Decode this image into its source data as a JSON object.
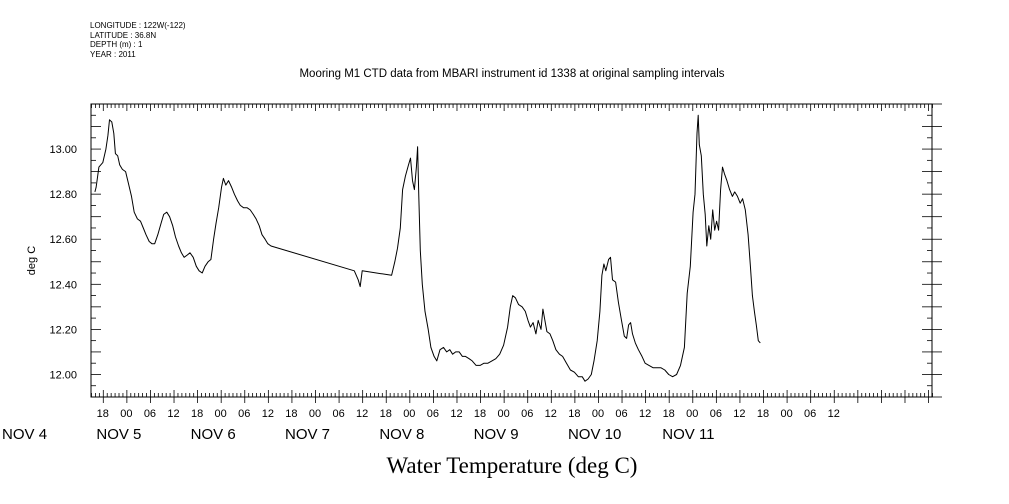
{
  "header": {
    "lines": [
      "LONGITUDE : 122W(-122)",
      "LATITUDE : 36.8N",
      "DEPTH (m) : 1",
      "YEAR : 2011"
    ],
    "title": "Mooring M1 CTD data from MBARI instrument id 1338 at original sampling intervals"
  },
  "chart_data": {
    "type": "line",
    "title": "Water Temperature (deg C)",
    "ylabel": "deg C",
    "xlabel": "",
    "ylim": [
      11.9,
      13.2
    ],
    "yticks": [
      12.0,
      12.2,
      12.4,
      12.6,
      12.8,
      13.0
    ],
    "ytick_labels": [
      "12.00",
      "12.20",
      "12.40",
      "12.60",
      "12.80",
      "13.00"
    ],
    "xlim_hours": [
      87.0,
      301.0
    ],
    "xtick_hour_labels": [
      "18",
      "00",
      "06",
      "12",
      "18",
      "00",
      "06",
      "12",
      "18",
      "00",
      "06",
      "12",
      "18",
      "00",
      "06",
      "12",
      "18",
      "00",
      "06",
      "12",
      "18",
      "00",
      "06",
      "12",
      "18",
      "00",
      "06",
      "12",
      "18",
      "00",
      "06",
      "12"
    ],
    "date_labels": [
      {
        "label": "NOV  4",
        "day": 4
      },
      {
        "label": "NOV  5",
        "day": 5
      },
      {
        "label": "NOV  6",
        "day": 6
      },
      {
        "label": "NOV  7",
        "day": 7
      },
      {
        "label": "NOV  8",
        "day": 8
      },
      {
        "label": "NOV  9",
        "day": 9
      },
      {
        "label": "NOV 10",
        "day": 10
      },
      {
        "label": "NOV 11",
        "day": 11
      }
    ],
    "series": [
      {
        "points": [
          [
            88.0,
            12.81
          ],
          [
            88.3,
            12.83
          ],
          [
            89.0,
            12.92
          ],
          [
            90.0,
            12.94
          ],
          [
            90.8,
            13.0
          ],
          [
            91.3,
            13.06
          ],
          [
            91.7,
            13.13
          ],
          [
            92.3,
            13.12
          ],
          [
            92.8,
            13.07
          ],
          [
            93.2,
            12.98
          ],
          [
            93.8,
            12.97
          ],
          [
            94.3,
            12.93
          ],
          [
            95.0,
            12.91
          ],
          [
            95.8,
            12.9
          ],
          [
            96.5,
            12.85
          ],
          [
            97.3,
            12.79
          ],
          [
            98.0,
            12.72
          ],
          [
            98.8,
            12.69
          ],
          [
            99.6,
            12.68
          ],
          [
            100.3,
            12.65
          ],
          [
            101.0,
            12.62
          ],
          [
            101.8,
            12.59
          ],
          [
            102.5,
            12.58
          ],
          [
            103.2,
            12.58
          ],
          [
            104.0,
            12.62
          ],
          [
            104.8,
            12.67
          ],
          [
            105.5,
            12.71
          ],
          [
            106.3,
            12.72
          ],
          [
            107.0,
            12.7
          ],
          [
            107.8,
            12.66
          ],
          [
            108.5,
            12.61
          ],
          [
            109.3,
            12.57
          ],
          [
            110.0,
            12.54
          ],
          [
            110.7,
            12.52
          ],
          [
            111.5,
            12.53
          ],
          [
            112.2,
            12.54
          ],
          [
            113.0,
            12.52
          ],
          [
            113.8,
            12.48
          ],
          [
            114.5,
            12.46
          ],
          [
            115.3,
            12.45
          ],
          [
            116.0,
            12.48
          ],
          [
            116.8,
            12.5
          ],
          [
            117.5,
            12.51
          ],
          [
            118.2,
            12.6
          ],
          [
            118.8,
            12.67
          ],
          [
            119.5,
            12.74
          ],
          [
            120.2,
            12.83
          ],
          [
            120.7,
            12.87
          ],
          [
            121.3,
            12.84
          ],
          [
            122.0,
            12.86
          ],
          [
            122.8,
            12.83
          ],
          [
            123.5,
            12.8
          ],
          [
            124.3,
            12.77
          ],
          [
            125.0,
            12.75
          ],
          [
            125.8,
            12.74
          ],
          [
            126.7,
            12.74
          ],
          [
            127.5,
            12.73
          ],
          [
            128.3,
            12.71
          ],
          [
            129.0,
            12.69
          ],
          [
            129.8,
            12.66
          ],
          [
            130.5,
            12.62
          ],
          [
            131.3,
            12.6
          ],
          [
            132.0,
            12.58
          ],
          [
            132.8,
            12.57
          ],
          [
            154.0,
            12.46
          ],
          [
            155.0,
            12.42
          ],
          [
            155.5,
            12.39
          ],
          [
            156.0,
            12.46
          ],
          [
            163.5,
            12.44
          ],
          [
            164.3,
            12.5
          ],
          [
            165.0,
            12.56
          ],
          [
            165.7,
            12.65
          ],
          [
            166.3,
            12.82
          ],
          [
            167.0,
            12.88
          ],
          [
            167.8,
            12.93
          ],
          [
            168.3,
            12.96
          ],
          [
            168.8,
            12.86
          ],
          [
            169.3,
            12.82
          ],
          [
            169.8,
            12.92
          ],
          [
            170.1,
            13.01
          ],
          [
            170.4,
            12.79
          ],
          [
            170.8,
            12.55
          ],
          [
            171.3,
            12.4
          ],
          [
            172.0,
            12.28
          ],
          [
            172.8,
            12.2
          ],
          [
            173.5,
            12.12
          ],
          [
            174.3,
            12.08
          ],
          [
            175.0,
            12.06
          ],
          [
            175.8,
            12.11
          ],
          [
            176.7,
            12.12
          ],
          [
            177.5,
            12.1
          ],
          [
            178.3,
            12.11
          ],
          [
            179.0,
            12.09
          ],
          [
            179.8,
            12.1
          ],
          [
            180.7,
            12.1
          ],
          [
            181.5,
            12.08
          ],
          [
            182.3,
            12.08
          ],
          [
            183.2,
            12.07
          ],
          [
            184.0,
            12.06
          ],
          [
            185.0,
            12.04
          ],
          [
            186.0,
            12.04
          ],
          [
            187.0,
            12.05
          ],
          [
            188.0,
            12.05
          ],
          [
            189.0,
            12.06
          ],
          [
            190.0,
            12.07
          ],
          [
            191.0,
            12.09
          ],
          [
            192.0,
            12.13
          ],
          [
            193.0,
            12.21
          ],
          [
            193.7,
            12.3
          ],
          [
            194.3,
            12.35
          ],
          [
            195.0,
            12.34
          ],
          [
            195.8,
            12.31
          ],
          [
            196.7,
            12.3
          ],
          [
            197.5,
            12.28
          ],
          [
            198.2,
            12.24
          ],
          [
            198.8,
            12.21
          ],
          [
            199.5,
            12.23
          ],
          [
            200.2,
            12.18
          ],
          [
            200.8,
            12.24
          ],
          [
            201.5,
            12.2
          ],
          [
            202.0,
            12.29
          ],
          [
            202.5,
            12.24
          ],
          [
            203.0,
            12.19
          ],
          [
            203.8,
            12.18
          ],
          [
            204.5,
            12.15
          ],
          [
            205.3,
            12.11
          ],
          [
            206.2,
            12.09
          ],
          [
            207.0,
            12.08
          ],
          [
            208.0,
            12.05
          ],
          [
            209.0,
            12.02
          ],
          [
            210.0,
            12.01
          ],
          [
            211.0,
            11.99
          ],
          [
            212.0,
            11.99
          ],
          [
            212.7,
            11.97
          ],
          [
            213.5,
            11.98
          ],
          [
            214.3,
            12.0
          ],
          [
            215.0,
            12.06
          ],
          [
            215.8,
            12.15
          ],
          [
            216.5,
            12.28
          ],
          [
            217.0,
            12.44
          ],
          [
            217.5,
            12.49
          ],
          [
            218.0,
            12.46
          ],
          [
            218.7,
            12.51
          ],
          [
            219.2,
            12.52
          ],
          [
            219.7,
            12.42
          ],
          [
            220.5,
            12.41
          ],
          [
            221.2,
            12.32
          ],
          [
            222.0,
            12.24
          ],
          [
            222.7,
            12.17
          ],
          [
            223.3,
            12.16
          ],
          [
            223.8,
            12.22
          ],
          [
            224.3,
            12.23
          ],
          [
            224.8,
            12.18
          ],
          [
            225.5,
            12.14
          ],
          [
            226.3,
            12.11
          ],
          [
            227.2,
            12.08
          ],
          [
            228.0,
            12.05
          ],
          [
            229.0,
            12.04
          ],
          [
            230.0,
            12.03
          ],
          [
            231.0,
            12.03
          ],
          [
            232.0,
            12.03
          ],
          [
            233.0,
            12.02
          ],
          [
            234.0,
            12.0
          ],
          [
            235.0,
            11.99
          ],
          [
            236.0,
            12.0
          ],
          [
            237.0,
            12.04
          ],
          [
            238.0,
            12.12
          ],
          [
            238.7,
            12.36
          ],
          [
            239.5,
            12.48
          ],
          [
            240.2,
            12.72
          ],
          [
            240.7,
            12.8
          ],
          [
            241.2,
            13.07
          ],
          [
            241.5,
            13.15
          ],
          [
            241.8,
            13.02
          ],
          [
            242.3,
            12.97
          ],
          [
            242.8,
            12.8
          ],
          [
            243.3,
            12.71
          ],
          [
            243.7,
            12.57
          ],
          [
            244.2,
            12.66
          ],
          [
            244.7,
            12.6
          ],
          [
            245.2,
            12.73
          ],
          [
            245.7,
            12.64
          ],
          [
            246.2,
            12.68
          ],
          [
            246.7,
            12.64
          ],
          [
            247.2,
            12.82
          ],
          [
            247.7,
            12.92
          ],
          [
            248.2,
            12.89
          ],
          [
            248.8,
            12.86
          ],
          [
            249.5,
            12.82
          ],
          [
            250.2,
            12.79
          ],
          [
            250.8,
            12.81
          ],
          [
            251.5,
            12.79
          ],
          [
            252.2,
            12.76
          ],
          [
            252.8,
            12.78
          ],
          [
            253.5,
            12.73
          ],
          [
            254.2,
            12.62
          ],
          [
            254.8,
            12.48
          ],
          [
            255.3,
            12.35
          ],
          [
            255.8,
            12.28
          ],
          [
            256.3,
            12.22
          ],
          [
            256.8,
            12.15
          ],
          [
            257.3,
            12.14
          ]
        ]
      }
    ],
    "grid": false
  }
}
